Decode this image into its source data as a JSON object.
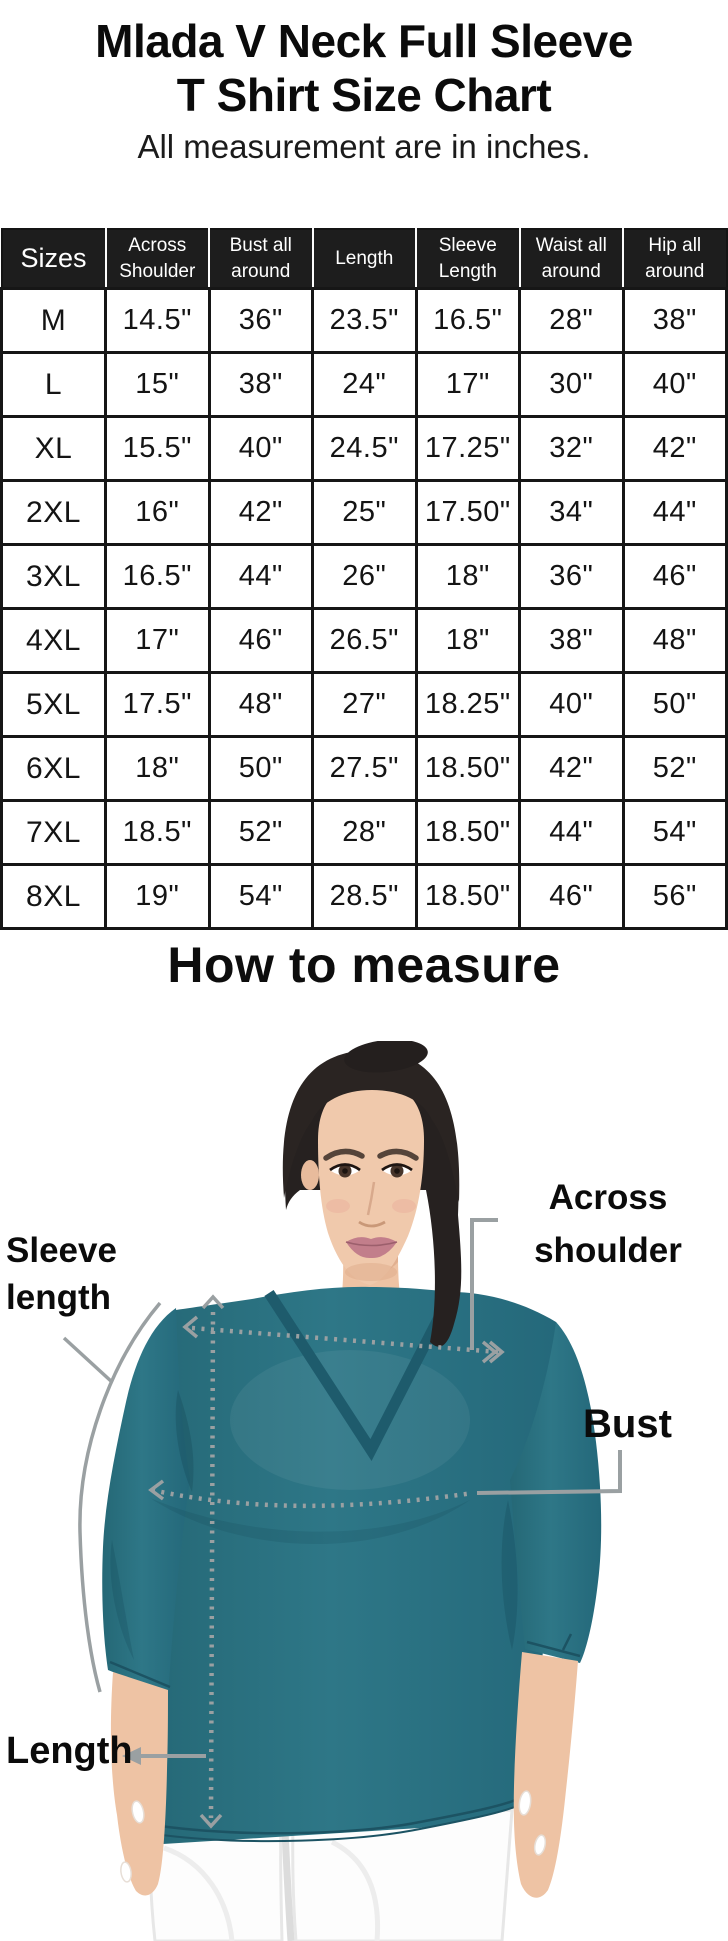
{
  "page": {
    "title": "Mlada V Neck Full Sleeve\nT Shirt Size Chart",
    "subtitle": "All measurement are in inches."
  },
  "table": {
    "columns": [
      "Sizes",
      "Across Shoulder",
      "Bust all around",
      "Length",
      "Sleeve Length",
      "Waist all around",
      "Hip all around"
    ],
    "rows": [
      [
        "M",
        "14.5\"",
        "36\"",
        "23.5\"",
        "16.5\"",
        "28\"",
        "38\""
      ],
      [
        "L",
        "15\"",
        "38\"",
        "24\"",
        "17\"",
        "30\"",
        "40\""
      ],
      [
        "XL",
        "15.5\"",
        "40\"",
        "24.5\"",
        "17.25\"",
        "32\"",
        "42\""
      ],
      [
        "2XL",
        "16\"",
        "42\"",
        "25\"",
        "17.50\"",
        "34\"",
        "44\""
      ],
      [
        "3XL",
        "16.5\"",
        "44\"",
        "26\"",
        "18\"",
        "36\"",
        "46\""
      ],
      [
        "4XL",
        "17\"",
        "46\"",
        "26.5\"",
        "18\"",
        "38\"",
        "48\""
      ],
      [
        "5XL",
        "17.5\"",
        "48\"",
        "27\"",
        "18.25\"",
        "40\"",
        "50\""
      ],
      [
        "6XL",
        "18\"",
        "50\"",
        "27.5\"",
        "18.50\"",
        "42\"",
        "52\""
      ],
      [
        "7XL",
        "18.5\"",
        "52\"",
        "28\"",
        "18.50\"",
        "44\"",
        "54\""
      ],
      [
        "8XL",
        "19\"",
        "54\"",
        "28.5\"",
        "18.50\"",
        "46\"",
        "56\""
      ]
    ]
  },
  "how_to_measure": {
    "heading": "How to measure",
    "labels": {
      "sleeve_length": "Sleeve length",
      "across_shoulder": "Across shoulder",
      "bust": "Bust",
      "length": "Length"
    }
  },
  "colors": {
    "accent_teal": "#2b7282",
    "teal_dark": "#1e5b6c",
    "annotation_gray": "#9aa0a2",
    "header_bg": "#1d1d1d"
  }
}
